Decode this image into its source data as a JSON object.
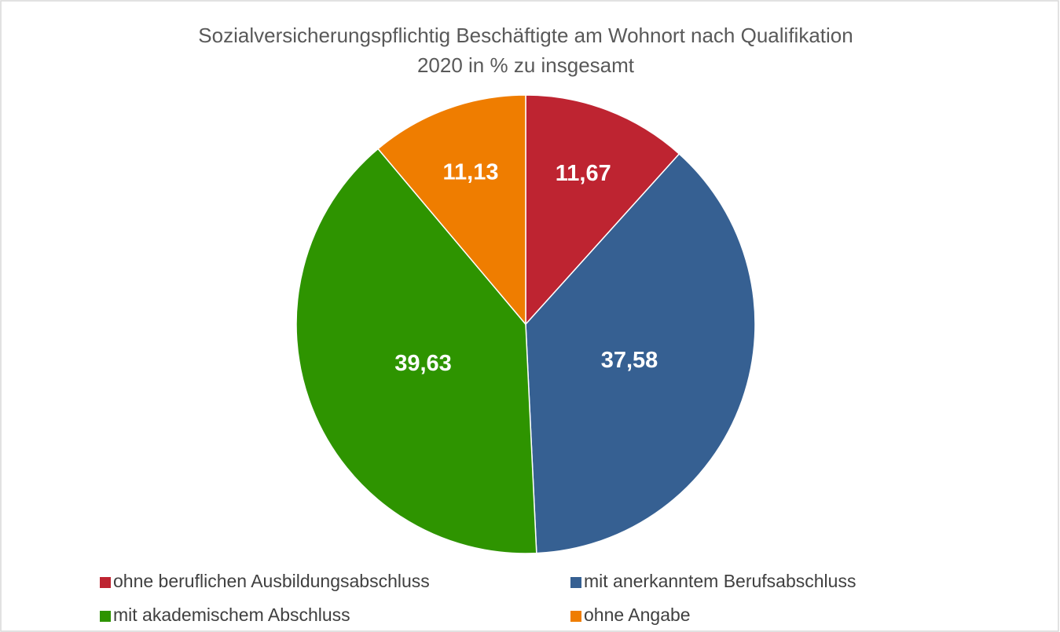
{
  "chart_data": {
    "type": "pie",
    "title": "Sozialversicherungspflichtig Beschäftigte am Wohnort nach Qualifikation",
    "subtitle": "2020 in % zu insgesamt",
    "categories": [
      "ohne beruflichen Ausbildungsabschluss",
      "mit anerkanntem Berufsabschluss",
      "mit akademischem Abschluss",
      "ohne Angabe"
    ],
    "values": [
      11.67,
      37.58,
      39.63,
      11.13
    ],
    "value_labels": [
      "11,67",
      "37,58",
      "39,63",
      "11,13"
    ],
    "colors": [
      "#be2431",
      "#366092",
      "#2e9400",
      "#ef7d00"
    ],
    "legend": "bottom"
  }
}
